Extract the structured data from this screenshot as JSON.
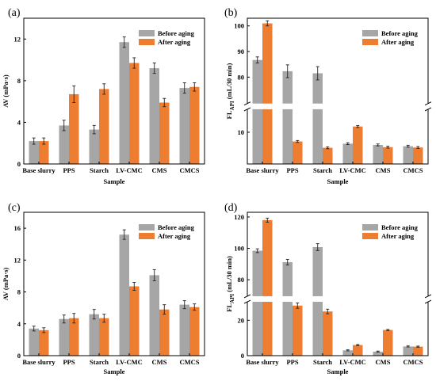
{
  "series_names": [
    "Before aging",
    "After aging"
  ],
  "colors": {
    "before": "#a6a6a6",
    "after": "#ed7d31"
  },
  "chart_data": [
    {
      "panel_label": "(a)",
      "type": "bar",
      "categories": [
        "Base slurry",
        "PPS",
        "Starch",
        "LV-CMC",
        "CMS",
        "CMCS"
      ],
      "xlabel": "Sample",
      "ylabel": "AV (mPa·s)",
      "ylim": [
        0,
        14
      ],
      "yticks": [
        "0",
        "4",
        "8",
        "12"
      ],
      "legend": "top-right",
      "series": [
        {
          "name": "Before aging",
          "values": [
            2.2,
            3.7,
            3.3,
            11.7,
            9.2,
            7.3
          ],
          "errors": [
            0.3,
            0.5,
            0.4,
            0.5,
            0.5,
            0.5
          ]
        },
        {
          "name": "After aging",
          "values": [
            2.2,
            6.7,
            7.2,
            9.7,
            5.9,
            7.4
          ],
          "errors": [
            0.3,
            0.8,
            0.5,
            0.5,
            0.4,
            0.4
          ]
        }
      ]
    },
    {
      "panel_label": "(b)",
      "type": "bar",
      "categories": [
        "Base slurry",
        "PPS",
        "Starch",
        "LV-CMC",
        "CMS",
        "CMCS"
      ],
      "xlabel": "Sample",
      "ylabel": "FLAPI (mL/30 min)",
      "ylabel_main": "FL",
      "ylabel_sub": "API",
      "ylabel_rest": " (mL/30 min)",
      "axis_break": {
        "lower": [
          0,
          17
        ],
        "upper": [
          70,
          103
        ]
      },
      "yticks": [
        "10",
        "80",
        "90",
        "100"
      ],
      "legend": "top-right",
      "series": [
        {
          "name": "Before aging",
          "values": [
            86.7,
            82.3,
            81.5,
            6.4,
            6.0,
            5.6
          ],
          "errors": [
            1.2,
            2.5,
            2.6,
            0.3,
            0.3,
            0.3
          ]
        },
        {
          "name": "After aging",
          "values": [
            101.0,
            7.1,
            5.1,
            11.8,
            5.3,
            5.2
          ],
          "errors": [
            1.0,
            0.3,
            0.3,
            0.3,
            0.3,
            0.3
          ]
        }
      ]
    },
    {
      "panel_label": "(c)",
      "type": "bar",
      "categories": [
        "Base slurry",
        "PPS",
        "Starch",
        "LV-CMC",
        "CMS",
        "CMCS"
      ],
      "xlabel": "Sample",
      "ylabel": "AV (mPa·s)",
      "ylim": [
        0,
        18
      ],
      "yticks": [
        "0",
        "4",
        "8",
        "12",
        "16"
      ],
      "legend": "top-right",
      "series": [
        {
          "name": "Before aging",
          "values": [
            3.4,
            4.6,
            5.2,
            15.2,
            10.1,
            6.4
          ],
          "errors": [
            0.3,
            0.5,
            0.6,
            0.6,
            0.7,
            0.5
          ]
        },
        {
          "name": "After aging",
          "values": [
            3.2,
            4.7,
            4.7,
            8.7,
            5.8,
            6.1
          ],
          "errors": [
            0.3,
            0.6,
            0.5,
            0.5,
            0.6,
            0.4
          ]
        }
      ]
    },
    {
      "panel_label": "(d)",
      "type": "bar",
      "categories": [
        "Base slurry",
        "PPS",
        "Starch",
        "LV-CMC",
        "CMS",
        "CMCS"
      ],
      "xlabel": "Sample",
      "ylabel": "FLAPI (mL/30 min)",
      "ylabel_main": "FL",
      "ylabel_sub": "API",
      "ylabel_rest": " (mL/30 min)",
      "axis_break": {
        "lower": [
          0,
          30
        ],
        "upper": [
          70,
          123
        ]
      },
      "yticks": [
        "0",
        "20",
        "80",
        "100",
        "120"
      ],
      "legend": "top-right",
      "series": [
        {
          "name": "Before aging",
          "values": [
            98.5,
            91.2,
            100.8,
            3.0,
            2.3,
            5.2
          ],
          "errors": [
            1.2,
            1.8,
            2.2,
            0.3,
            0.3,
            0.3
          ]
        },
        {
          "name": "After aging",
          "values": [
            118.0,
            28.3,
            25.0,
            6.0,
            14.5,
            5.1
          ],
          "errors": [
            1.3,
            1.5,
            1.3,
            0.3,
            0.3,
            0.3
          ]
        }
      ]
    }
  ]
}
